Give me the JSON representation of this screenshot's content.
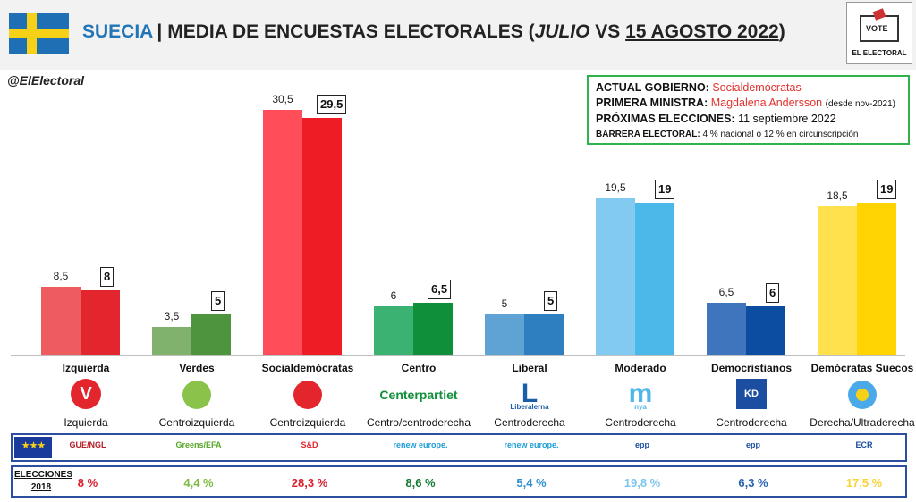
{
  "header": {
    "country": "SUECIA",
    "title": "MEDIA DE ENCUESTAS ELECTORALES",
    "title_open": "(",
    "period_start": "JULIO",
    "vs": " VS ",
    "period_end": "15 AGOSTO 2022",
    "title_close": ")",
    "logo_ballot": "VOTE",
    "logo_brand": "EL ELECTORAL"
  },
  "handle": "@ElElectoral",
  "info": {
    "gov_label": "ACTUAL GOBIERNO:",
    "gov_value": "Socialdemócratas",
    "pm_label": "PRIMERA MINISTRA:",
    "pm_value": "Magdalena Andersson",
    "pm_note": "(desde nov-2021)",
    "next_label": "PRÓXIMAS ELECCIONES:",
    "next_value": "11 septiembre 2022",
    "barrier_label": "BARRERA ELECTORAL:",
    "barrier_value": "4 % nacional o 12 % en circunscripción"
  },
  "chart_data": {
    "type": "bar",
    "categories": [
      "Izquierda",
      "Verdes",
      "Socialdemócratas",
      "Centro",
      "Liberal",
      "Moderado",
      "Democristianos",
      "Demócratas Suecos"
    ],
    "series": [
      {
        "values": [
          8.5,
          3.5,
          30.5,
          6,
          5,
          19.5,
          6.5,
          18.5
        ],
        "labels": [
          "8,5",
          "3,5",
          "30,5",
          "6",
          "5",
          "19,5",
          "6,5",
          "18,5"
        ]
      },
      {
        "values": [
          8,
          5,
          29.5,
          6.5,
          5,
          19,
          6,
          19
        ],
        "labels": [
          "8",
          "5",
          "29,5",
          "6,5",
          "5",
          "19",
          "6",
          "19"
        ]
      }
    ],
    "ylim": [
      0,
      32
    ],
    "colors_poll": [
      "#ee5c60",
      "#80b26e",
      "#ff4d5a",
      "#3bb272",
      "#5ea3d4",
      "#82caf0",
      "#3f75bd",
      "#ffe14d"
    ],
    "colors_final": [
      "#e3262e",
      "#4e943f",
      "#ee1c25",
      "#0f8f3a",
      "#2d7fbf",
      "#4bb8ea",
      "#0c4da2",
      "#ffd400"
    ]
  },
  "parties": [
    {
      "name": "Izquierda",
      "bloc": "Izquierda",
      "logo": "V",
      "logo_color": "#e3262e",
      "eu": "GUE/NGL",
      "eu_color": "#b11d24",
      "result": "8 %",
      "result_color": "#d9202a"
    },
    {
      "name": "Verdes",
      "bloc": "Centroizquierda",
      "logo": "sunflower-icon",
      "logo_color": "#8bc34a",
      "eu": "Greens/EFA",
      "eu_color": "#57a828",
      "result": "4,4 %",
      "result_color": "#7dbb42"
    },
    {
      "name": "Socialdemócratas",
      "bloc": "Centroizquierda",
      "logo": "rose-icon",
      "logo_color": "#e3262e",
      "eu": "S&D",
      "eu_color": "#e3262e",
      "result": "28,3 %",
      "result_color": "#d9202a"
    },
    {
      "name": "Centro",
      "bloc": "Centro/centroderecha",
      "logo": "Centerpartiet",
      "logo_color": "#0f8f3a",
      "eu": "renew europe.",
      "eu_color": "#1b9ed8",
      "result": "8,6 %",
      "result_color": "#0f7a32"
    },
    {
      "name": "Liberal",
      "bloc": "Centroderecha",
      "logo": "L",
      "logo_color": "#1b5ea8",
      "logo_sub": "Liberalerna",
      "eu": "renew europe.",
      "eu_color": "#1b9ed8",
      "result": "5,4 %",
      "result_color": "#2d8fd0"
    },
    {
      "name": "Moderado",
      "bloc": "Centroderecha",
      "logo": "m",
      "logo_color": "#4fb6e8",
      "logo_sub": "nya",
      "eu": "epp",
      "eu_color": "#1b4ea0",
      "result": "19,8 %",
      "result_color": "#7cc5ee"
    },
    {
      "name": "Democristianos",
      "bloc": "Centroderecha",
      "logo": "KD",
      "logo_color": "#1b4ea0",
      "eu": "epp",
      "eu_color": "#1b4ea0",
      "result": "6,3 %",
      "result_color": "#2a63b0"
    },
    {
      "name": "Demócratas Suecos",
      "bloc": "Derecha/Ultraderecha",
      "logo": "flower-icon",
      "logo_color": "#4aa9e8",
      "eu": "ECR",
      "eu_color": "#1b4ea0",
      "result": "17,5 %",
      "result_color": "#f6d43a"
    }
  ],
  "results_label": "ELECCIONES 2018"
}
